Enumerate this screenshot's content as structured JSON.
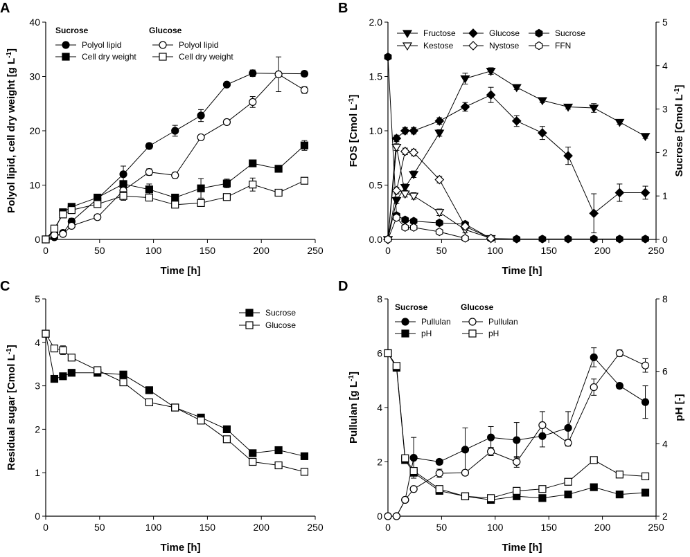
{
  "chart_data": [
    {
      "type": "line",
      "panel_label": "A",
      "xlabel": "Time [h]",
      "ylabel": "Polyol lipid, cell dry weight [g L",
      "ylabel_sup": "-1",
      "ylabel_end": "]",
      "xlim": [
        0,
        250
      ],
      "ylim": [
        0,
        40
      ],
      "xticks": [
        0,
        50,
        100,
        150,
        200,
        250
      ],
      "yticks": [
        0,
        10,
        20,
        30,
        40
      ],
      "legend_headers": [
        "Sucrose",
        "Glucose"
      ],
      "series": [
        {
          "name": "Polyol lipid",
          "group": "Sucrose",
          "marker": "circle",
          "filled": true,
          "x": [
            0,
            8,
            16,
            24,
            48,
            72,
            96,
            120,
            144,
            168,
            192,
            240
          ],
          "y": [
            0,
            0.4,
            1.2,
            3.3,
            7.5,
            12.0,
            17.2,
            20.0,
            22.8,
            28.5,
            30.6,
            30.5
          ],
          "err": [
            0.2,
            0.3,
            0.5,
            0.6,
            0.6,
            1.5,
            0.5,
            1.0,
            1.1,
            0.4,
            0.6,
            0.5
          ]
        },
        {
          "name": "Cell dry weight",
          "group": "Sucrose",
          "marker": "square",
          "filled": true,
          "x": [
            0,
            8,
            16,
            24,
            48,
            72,
            96,
            120,
            144,
            168,
            192,
            216,
            240
          ],
          "y": [
            0,
            1.6,
            5.0,
            6.0,
            7.7,
            10.2,
            9.2,
            7.7,
            9.4,
            10.3,
            14.0,
            13.0,
            17.3
          ],
          "err": [
            0.2,
            0.3,
            0.4,
            0.5,
            0.5,
            0.6,
            1.0,
            0.5,
            1.8,
            0.8,
            0.6,
            0.5,
            0.9
          ]
        },
        {
          "name": "Polyol lipid",
          "group": "Glucose",
          "marker": "circle",
          "filled": false,
          "x": [
            0,
            8,
            16,
            24,
            48,
            72,
            96,
            120,
            144,
            168,
            192,
            216,
            240
          ],
          "y": [
            0,
            0.8,
            1.0,
            2.5,
            4.1,
            9.0,
            12.4,
            11.8,
            18.8,
            21.6,
            25.3,
            30.4,
            27.5
          ],
          "err": [
            0.2,
            0.3,
            0.3,
            0.4,
            0.5,
            0.8,
            0.6,
            0.5,
            0.4,
            0.5,
            1.0,
            3.2,
            0.6
          ]
        },
        {
          "name": "Cell dry weight",
          "group": "Glucose",
          "marker": "square",
          "filled": false,
          "x": [
            0,
            8,
            16,
            24,
            48,
            72,
            96,
            120,
            144,
            168,
            192,
            216,
            240
          ],
          "y": [
            0,
            2.0,
            4.6,
            5.4,
            6.5,
            8.0,
            7.7,
            6.4,
            6.7,
            7.8,
            10.1,
            8.6,
            10.8
          ],
          "err": [
            0.2,
            0.4,
            0.5,
            0.5,
            0.6,
            0.8,
            0.5,
            0.5,
            0.5,
            0.4,
            1.2,
            0.5,
            0.4
          ]
        }
      ]
    },
    {
      "type": "line",
      "panel_label": "B",
      "xlabel": "Time [h]",
      "ylabel": "FOS [Cmol L",
      "ylabel_sup": "-1",
      "ylabel_end": "]",
      "ylabel_right": "Sucrose [Cmol L",
      "ylabel_right_sup": "-1",
      "ylabel_right_end": "]",
      "xlim": [
        0,
        250
      ],
      "ylim": [
        0,
        2.0
      ],
      "ylim_right": [
        0,
        5
      ],
      "xticks": [
        0,
        50,
        100,
        150,
        200,
        250
      ],
      "yticks": [
        "0.0",
        "0.5",
        "1.0",
        "1.5",
        "2.0"
      ],
      "yticks_right": [
        0,
        1,
        2,
        3,
        4,
        5
      ],
      "series": [
        {
          "name": "Fructose",
          "marker": "triangle-down",
          "filled": true,
          "axis": "left",
          "x": [
            0,
            8,
            16,
            24,
            48,
            72,
            96,
            120,
            144,
            168,
            192,
            216,
            240
          ],
          "y": [
            0,
            0.36,
            0.48,
            0.6,
            0.98,
            1.48,
            1.55,
            1.4,
            1.28,
            1.22,
            1.21,
            1.08,
            0.95
          ],
          "err": [
            0,
            0.03,
            0.03,
            0.03,
            0.03,
            0.05,
            0.03,
            0.02,
            0.02,
            0.02,
            0.04,
            0.02,
            0.02
          ]
        },
        {
          "name": "Glucose",
          "marker": "diamond",
          "filled": true,
          "axis": "left",
          "x": [
            0,
            8,
            16,
            24,
            48,
            72,
            96,
            120,
            144,
            168,
            192,
            216,
            240
          ],
          "y": [
            0,
            0.93,
            1.0,
            1.0,
            1.09,
            1.22,
            1.33,
            1.09,
            0.98,
            0.77,
            0.24,
            0.43,
            0.43
          ],
          "err": [
            0,
            0.03,
            0.03,
            0.03,
            0.03,
            0.04,
            0.07,
            0.05,
            0.06,
            0.08,
            0.18,
            0.08,
            0.06
          ]
        },
        {
          "name": "Sucrose",
          "marker": "hexagon",
          "filled": true,
          "axis": "right",
          "x": [
            0,
            8,
            16,
            24,
            48,
            72,
            96,
            120,
            144,
            168,
            192,
            216,
            240
          ],
          "y": [
            4.2,
            0.55,
            0.45,
            0.42,
            0.38,
            0.35,
            0.02,
            0.01,
            0.01,
            0.01,
            0.01,
            0.01,
            0.01
          ],
          "err": [
            0.05,
            0.03,
            0.03,
            0.03,
            0.03,
            0.03,
            0,
            0,
            0,
            0,
            0,
            0,
            0
          ]
        },
        {
          "name": "Kestose",
          "marker": "triangle-down",
          "filled": false,
          "axis": "left",
          "x": [
            0,
            8,
            16,
            24,
            48,
            72,
            96
          ],
          "y": [
            0,
            0.85,
            0.42,
            0.4,
            0.25,
            0.09,
            0.01
          ],
          "err": [
            0,
            0.03,
            0.03,
            0.03,
            0.03,
            0.03,
            0
          ]
        },
        {
          "name": "Nystose",
          "marker": "diamond",
          "filled": false,
          "axis": "left",
          "x": [
            0,
            8,
            16,
            24,
            48,
            72,
            96
          ],
          "y": [
            0,
            0.45,
            0.81,
            0.8,
            0.55,
            0.12,
            0.01
          ],
          "err": [
            0,
            0.03,
            0.03,
            0.03,
            0.03,
            0.03,
            0
          ]
        },
        {
          "name": "FFN",
          "marker": "hexagon",
          "filled": false,
          "axis": "left",
          "x": [
            0,
            8,
            16,
            24,
            48,
            72
          ],
          "y": [
            0,
            0.2,
            0.11,
            0.11,
            0.07,
            0.01
          ],
          "err": [
            0,
            0.02,
            0.02,
            0.02,
            0.02,
            0
          ]
        }
      ]
    },
    {
      "type": "line",
      "panel_label": "C",
      "xlabel": "Time [h]",
      "ylabel": "Residual sugar [Cmol L",
      "ylabel_sup": "-1",
      "ylabel_end": "]",
      "xlim": [
        0,
        250
      ],
      "ylim": [
        0,
        5
      ],
      "xticks": [
        0,
        50,
        100,
        150,
        200,
        250
      ],
      "yticks": [
        0,
        1,
        2,
        3,
        4,
        5
      ],
      "series": [
        {
          "name": "Sucrose",
          "marker": "square",
          "filled": true,
          "x": [
            0,
            8,
            16,
            24,
            48,
            72,
            96,
            120,
            144,
            168,
            192,
            216,
            240
          ],
          "y": [
            4.2,
            3.16,
            3.22,
            3.3,
            3.3,
            3.26,
            2.9,
            2.5,
            2.27,
            2.0,
            1.45,
            1.52,
            1.38
          ],
          "err": [
            0.05,
            0.03,
            0.03,
            0.03,
            0.03,
            0.04,
            0.05,
            0.03,
            0.04,
            0.03,
            0.03,
            0.03,
            0.03
          ]
        },
        {
          "name": "Glucose",
          "marker": "square",
          "filled": false,
          "x": [
            0,
            8,
            16,
            24,
            48,
            72,
            96,
            120,
            144,
            168,
            192,
            216,
            240
          ],
          "y": [
            4.2,
            3.86,
            3.82,
            3.65,
            3.36,
            3.08,
            2.62,
            2.5,
            2.2,
            1.77,
            1.25,
            1.17,
            1.02
          ],
          "err": [
            0.05,
            0.05,
            0.1,
            0.05,
            0.05,
            0.05,
            0.08,
            0.04,
            0.05,
            0.04,
            0.05,
            0.03,
            0.05
          ]
        }
      ]
    },
    {
      "type": "line",
      "panel_label": "D",
      "xlabel": "Time [h]",
      "ylabel": "Pullulan [g L",
      "ylabel_sup": "-1",
      "ylabel_end": "]",
      "ylabel_right": "pH [-]",
      "xlim": [
        0,
        250
      ],
      "ylim": [
        0,
        8
      ],
      "ylim_right": [
        2,
        8
      ],
      "xticks": [
        0,
        50,
        100,
        150,
        200,
        250
      ],
      "yticks": [
        0,
        2,
        4,
        6,
        8
      ],
      "yticks_right": [
        2,
        4,
        6,
        8
      ],
      "legend_headers": [
        "Sucrose",
        "Glucose"
      ],
      "series": [
        {
          "name": "Pullulan",
          "group": "Sucrose",
          "marker": "circle",
          "filled": true,
          "axis": "left",
          "x": [
            0,
            8,
            16,
            24,
            48,
            72,
            96,
            120,
            144,
            168,
            192,
            216,
            240
          ],
          "y": [
            0,
            0,
            0.6,
            2.15,
            2.0,
            2.45,
            2.9,
            2.8,
            2.95,
            3.25,
            5.85,
            4.8,
            4.2
          ],
          "err": [
            0,
            0,
            0.1,
            0.75,
            0.1,
            0.8,
            0.4,
            0.65,
            0.4,
            0.6,
            0.35,
            0.1,
            0.6
          ]
        },
        {
          "name": "pH",
          "group": "Sucrose",
          "marker": "square",
          "filled": true,
          "axis": "right",
          "x": [
            0,
            8,
            16,
            24,
            48,
            72,
            96,
            120,
            144,
            168,
            192,
            216,
            240
          ],
          "y": [
            6.5,
            6.1,
            3.55,
            3.2,
            2.7,
            2.55,
            2.45,
            2.55,
            2.5,
            2.6,
            2.8,
            2.6,
            2.65
          ],
          "err": [
            0.05,
            0.05,
            0.08,
            0.08,
            0.05,
            0.05,
            0.05,
            0.04,
            0.04,
            0.04,
            0.04,
            0.04,
            0.04
          ]
        },
        {
          "name": "Pullulan",
          "group": "Glucose",
          "marker": "circle",
          "filled": false,
          "axis": "left",
          "x": [
            0,
            8,
            16,
            24,
            48,
            72,
            96,
            120,
            144,
            168,
            192,
            216,
            240
          ],
          "y": [
            0,
            0,
            0.6,
            1.0,
            1.58,
            1.6,
            2.38,
            2.0,
            3.35,
            2.7,
            4.75,
            6.0,
            5.55
          ],
          "err": [
            0,
            0,
            0.08,
            0.1,
            0.15,
            0.1,
            0.15,
            0.2,
            0.5,
            0.12,
            0.3,
            0.12,
            0.25
          ]
        },
        {
          "name": "pH",
          "group": "Glucose",
          "marker": "square",
          "filled": false,
          "axis": "right",
          "x": [
            0,
            8,
            16,
            24,
            48,
            72,
            96,
            120,
            144,
            168,
            192,
            216,
            240
          ],
          "y": [
            6.5,
            6.15,
            3.6,
            3.25,
            2.75,
            2.55,
            2.5,
            2.7,
            2.75,
            2.95,
            3.55,
            3.15,
            3.1
          ],
          "err": [
            0.05,
            0.05,
            0.08,
            0.08,
            0.05,
            0.05,
            0.05,
            0.05,
            0.05,
            0.05,
            0.08,
            0.06,
            0.05
          ]
        }
      ]
    }
  ]
}
